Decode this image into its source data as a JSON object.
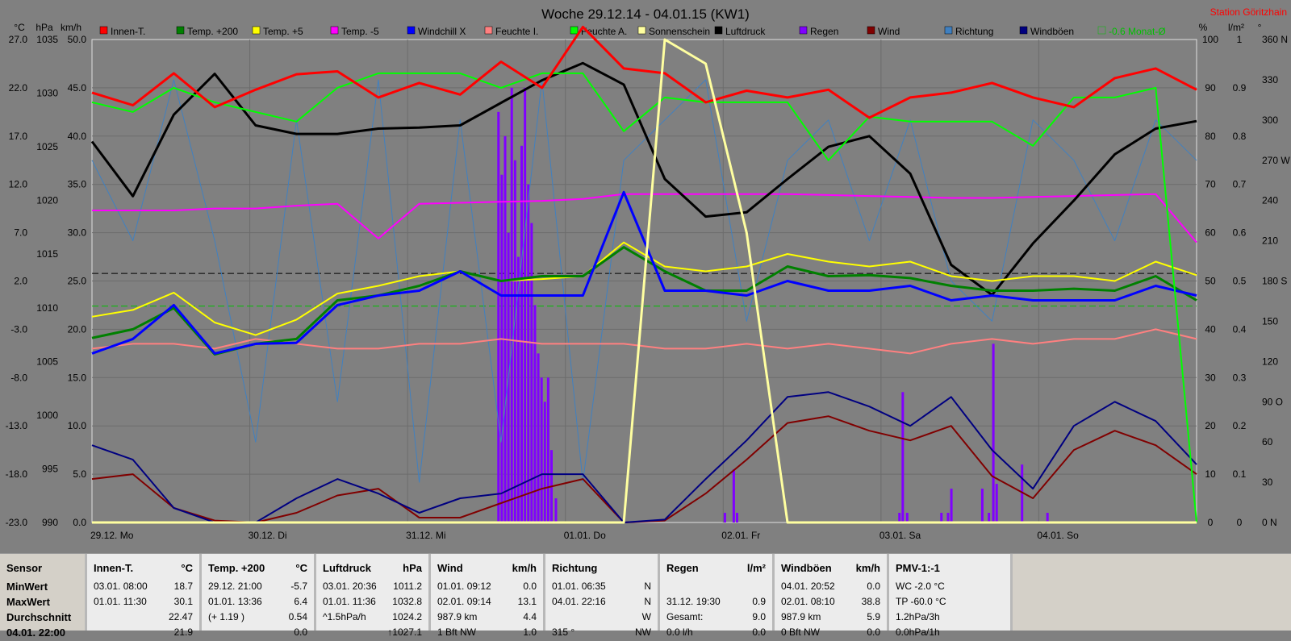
{
  "chart_data": {
    "type": "line",
    "title": "Woche 29.12.14 - 04.01.15 (KW1)",
    "station": "Station Göritzhain",
    "legend": [
      "Innen-T.",
      "Temp. +200",
      "Temp. +5",
      "Temp. -5",
      "Windchill X",
      "Feuchte I.",
      "Feuchte A.",
      "Sonnenschein",
      "Luftdruck",
      "Regen",
      "Wind",
      "Richtung",
      "Windböen",
      "-0.6 Monat-Ø"
    ],
    "legend_colors": [
      "#ff0000",
      "#008000",
      "#ffff00",
      "#ff00ff",
      "#0000ff",
      "#ff8080",
      "#00ff00",
      "#ffffa0",
      "#000000",
      "#8000ff",
      "#800000",
      "#4080c0",
      "#000080",
      "#00c000"
    ],
    "left_axis_headers": [
      "°C",
      "hPa",
      "km/h"
    ],
    "right_axis_headers": [
      "%",
      "l/m²",
      "°"
    ],
    "axis_celsius": [
      "27.0",
      "22.0",
      "17.0",
      "12.0",
      "7.0",
      "2.0",
      "-3.0",
      "-8.0",
      "-13.0",
      "-18.0",
      "-23.0"
    ],
    "axis_hpa": [
      "1035",
      "1030",
      "1025",
      "1020",
      "1015",
      "1010",
      "1005",
      "1000",
      "995",
      "990"
    ],
    "axis_kmh": [
      "50.0",
      "45.0",
      "40.0",
      "35.0",
      "30.0",
      "25.0",
      "20.0",
      "15.0",
      "10.0",
      "5.0",
      "0.0"
    ],
    "axis_percent": [
      "100",
      "90",
      "80",
      "70",
      "60",
      "50",
      "40",
      "30",
      "20",
      "10",
      "0"
    ],
    "axis_rain": [
      "1",
      "0.9",
      "0.8",
      "0.7",
      "0.6",
      "0.5",
      "0.4",
      "0.3",
      "0.2",
      "0.1",
      "0"
    ],
    "axis_degree": [
      "360 N",
      "330",
      "300",
      "270 W",
      "240",
      "210",
      "180 S",
      "150",
      "120",
      "90 O",
      "60",
      "30",
      "0 N"
    ],
    "x_labels": [
      "29.12. Mo",
      "30.12. Di",
      "31.12. Mi",
      "01.01. Do",
      "02.01. Fr",
      "03.01. Sa",
      "04.01. So"
    ],
    "series": [
      {
        "name": "Innen-T.",
        "unit": "°C",
        "y": [
          21.5,
          20.2,
          23.5,
          20.0,
          21.8,
          23.4,
          23.7,
          21.0,
          22.5,
          21.3,
          24.7,
          22.0,
          28.3,
          24.0,
          23.5,
          20.5,
          21.7,
          21.0,
          21.8,
          18.9,
          21.0,
          21.5,
          22.5,
          21.0,
          20.0,
          23.0,
          24.0,
          21.8
        ]
      },
      {
        "name": "Temp. +200",
        "unit": "°C",
        "y": [
          -3.9,
          -3.0,
          -0.8,
          -5.6,
          -4.5,
          -4.0,
          0.0,
          0.5,
          1.5,
          3.0,
          2.0,
          2.5,
          2.5,
          5.5,
          3.0,
          1.0,
          1.0,
          3.5,
          2.5,
          2.6,
          2.3,
          1.5,
          1.0,
          1.0,
          1.2,
          1.0,
          2.5,
          0.0
        ]
      },
      {
        "name": "Temp. +5",
        "unit": "°C",
        "y": [
          -1.7,
          -1.0,
          0.8,
          -2.3,
          -3.6,
          -2.0,
          0.7,
          1.5,
          2.5,
          3.0,
          2.0,
          2.2,
          2.5,
          6.0,
          3.5,
          3.0,
          3.5,
          4.8,
          4.0,
          3.5,
          4.0,
          2.5,
          2.0,
          2.5,
          2.5,
          2.0,
          4.0,
          2.6
        ]
      },
      {
        "name": "Temp. -5",
        "unit": "°C",
        "y": [
          9.3,
          9.3,
          9.3,
          9.5,
          9.5,
          9.8,
          10.0,
          6.4,
          10.0,
          10.1,
          10.2,
          10.3,
          10.5,
          11.0,
          11.0,
          11.0,
          11.0,
          11.0,
          10.9,
          10.8,
          10.7,
          10.6,
          10.6,
          10.7,
          10.8,
          10.9,
          11.0,
          6.0
        ]
      },
      {
        "name": "Windchill X",
        "unit": "°C",
        "y": [
          -5.5,
          -4.0,
          -0.5,
          -5.5,
          -4.5,
          -4.4,
          -0.5,
          0.5,
          1.0,
          3.0,
          0.5,
          0.5,
          0.5,
          11.2,
          1.0,
          1.0,
          0.5,
          2.0,
          1.0,
          1.0,
          1.5,
          0.0,
          0.5,
          0.0,
          0.0,
          0.0,
          1.5,
          0.5
        ]
      },
      {
        "name": "Feuchte I.",
        "unit": "%",
        "y": [
          36,
          37,
          37,
          36,
          38,
          37,
          36,
          36,
          37,
          37,
          38,
          37,
          37,
          37,
          36,
          36,
          37,
          36,
          37,
          36,
          35,
          37,
          38,
          37,
          38,
          38,
          40,
          38
        ]
      },
      {
        "name": "Feuchte A.",
        "unit": "%",
        "y": [
          87,
          85,
          90,
          87,
          85,
          83,
          90,
          93,
          93,
          93,
          90,
          93,
          93,
          81,
          88,
          87,
          87,
          87,
          75,
          84,
          83,
          83,
          83,
          78,
          88,
          88,
          90,
          0
        ]
      },
      {
        "name": "Sonnenschein",
        "unit": "%",
        "y": [
          0,
          0,
          0,
          0,
          0,
          0,
          0,
          0,
          0,
          0,
          0,
          0,
          0,
          0,
          100,
          95,
          60,
          0,
          0,
          0,
          0,
          0,
          0,
          0,
          0,
          0,
          0,
          0
        ]
      },
      {
        "name": "Luftdruck",
        "unit": "hPa",
        "y": [
          1025.5,
          1020.4,
          1028.0,
          1031.8,
          1027.0,
          1026.2,
          1026.2,
          1026.7,
          1026.8,
          1027.0,
          1029.1,
          1031.2,
          1032.8,
          1030.8,
          1022.0,
          1018.5,
          1018.9,
          1022.0,
          1025.0,
          1026.0,
          1022.5,
          1014.0,
          1011.2,
          1016.0,
          1020.0,
          1024.3,
          1026.7,
          1027.4
        ]
      },
      {
        "name": "Wind",
        "unit": "km/h",
        "y": [
          4.5,
          5.0,
          1.5,
          0.2,
          0.0,
          1.0,
          2.8,
          3.5,
          0.5,
          0.5,
          2.0,
          3.5,
          4.5,
          0.0,
          0.2,
          3.0,
          6.5,
          10.3,
          11.0,
          9.5,
          8.5,
          10.0,
          4.8,
          2.5,
          7.5,
          9.5,
          8.0,
          5.0
        ]
      },
      {
        "name": "Windböen",
        "unit": "km/h",
        "y": [
          8.0,
          6.5,
          1.5,
          0.0,
          0.0,
          2.5,
          4.5,
          3.0,
          1.0,
          2.5,
          3.0,
          5.0,
          5.0,
          0.0,
          0.3,
          4.5,
          8.5,
          13.0,
          13.5,
          12.0,
          10.0,
          13.0,
          7.5,
          3.5,
          10.0,
          12.5,
          10.5,
          6.0
        ]
      },
      {
        "name": "Richtung",
        "unit": "°",
        "y": [
          270,
          210,
          330,
          210,
          60,
          300,
          90,
          330,
          30,
          300,
          60,
          330,
          30,
          270,
          300,
          330,
          150,
          270,
          300,
          210,
          300,
          180,
          150,
          300,
          270,
          210,
          300,
          270
        ]
      }
    ],
    "rain_bars": [
      {
        "x": 0.368,
        "v": 0.85
      },
      {
        "x": 0.371,
        "v": 0.72
      },
      {
        "x": 0.374,
        "v": 0.8
      },
      {
        "x": 0.377,
        "v": 0.6
      },
      {
        "x": 0.38,
        "v": 0.9
      },
      {
        "x": 0.383,
        "v": 0.75
      },
      {
        "x": 0.386,
        "v": 0.55
      },
      {
        "x": 0.389,
        "v": 0.78
      },
      {
        "x": 0.392,
        "v": 0.9
      },
      {
        "x": 0.395,
        "v": 0.7
      },
      {
        "x": 0.398,
        "v": 0.62
      },
      {
        "x": 0.401,
        "v": 0.45
      },
      {
        "x": 0.404,
        "v": 0.35
      },
      {
        "x": 0.407,
        "v": 0.3
      },
      {
        "x": 0.41,
        "v": 0.25
      },
      {
        "x": 0.413,
        "v": 0.3
      },
      {
        "x": 0.416,
        "v": 0.15
      },
      {
        "x": 0.42,
        "v": 0.05
      },
      {
        "x": 0.573,
        "v": 0.02
      },
      {
        "x": 0.581,
        "v": 0.11
      },
      {
        "x": 0.584,
        "v": 0.02
      },
      {
        "x": 0.731,
        "v": 0.02
      },
      {
        "x": 0.734,
        "v": 0.27
      },
      {
        "x": 0.738,
        "v": 0.02
      },
      {
        "x": 0.769,
        "v": 0.02
      },
      {
        "x": 0.775,
        "v": 0.02
      },
      {
        "x": 0.778,
        "v": 0.07
      },
      {
        "x": 0.806,
        "v": 0.07
      },
      {
        "x": 0.812,
        "v": 0.02
      },
      {
        "x": 0.816,
        "v": 0.37
      },
      {
        "x": 0.819,
        "v": 0.08
      },
      {
        "x": 0.842,
        "v": 0.12
      },
      {
        "x": 0.865,
        "v": 0.02
      }
    ],
    "monat_mittel_celsius": -0.6,
    "reference_hpa": 1013.2,
    "ylim_celsius": [
      -23.0,
      27.0
    ],
    "ylim_hpa": [
      990,
      1035
    ],
    "ylim_kmh": [
      0,
      50
    ],
    "grid": true,
    "legend_placement": "top"
  },
  "stats": {
    "columns": [
      {
        "title": "Sensor",
        "unit": "",
        "rows": [
          [
            "MinWert",
            ""
          ],
          [
            "MaxWert",
            ""
          ],
          [
            "Durchschnitt",
            ""
          ],
          [
            "04.01. 22:00",
            ""
          ]
        ]
      },
      {
        "title": "Innen-T.",
        "unit": "°C",
        "rows": [
          [
            "03.01. 08:00",
            "18.7"
          ],
          [
            "01.01. 11:30",
            "30.1"
          ],
          [
            "",
            "22.47"
          ],
          [
            "",
            "21.9"
          ]
        ]
      },
      {
        "title": "Temp. +200",
        "unit": "°C",
        "rows": [
          [
            "29.12. 21:00",
            "-5.7"
          ],
          [
            "01.01. 13:36",
            "6.4"
          ],
          [
            "(+ 1.19 )",
            "0.54"
          ],
          [
            "",
            "0.0"
          ]
        ]
      },
      {
        "title": "Luftdruck",
        "unit": "hPa",
        "rows": [
          [
            "03.01. 20:36",
            "1011.2"
          ],
          [
            "01.01. 11:36",
            "1032.8"
          ],
          [
            "^1.5hPa/h",
            "1024.2"
          ],
          [
            "",
            "↑1027.1"
          ]
        ]
      },
      {
        "title": "Wind",
        "unit": "km/h",
        "rows": [
          [
            "01.01. 09:12",
            "0.0"
          ],
          [
            "02.01. 09:14",
            "13.1"
          ],
          [
            "987.9 km",
            "4.4"
          ],
          [
            "1 Bft NW",
            "1.0"
          ]
        ]
      },
      {
        "title": "Richtung",
        "unit": "",
        "rows": [
          [
            "01.01. 06:35",
            "N"
          ],
          [
            "04.01. 22:16",
            "N"
          ],
          [
            "",
            "W"
          ],
          [
            "315 °",
            "NW"
          ]
        ]
      },
      {
        "title": "Regen",
        "unit": "l/m²",
        "rows": [
          [
            "",
            ""
          ],
          [
            "31.12. 19:30",
            "0.9"
          ],
          [
            "Gesamt:",
            "9.0"
          ],
          [
            "0.0 l/h",
            "0.0"
          ]
        ]
      },
      {
        "title": "Windböen",
        "unit": "km/h",
        "rows": [
          [
            "04.01. 20:52",
            "0.0"
          ],
          [
            "02.01. 08:10",
            "38.8"
          ],
          [
            "987.9 km",
            "5.9"
          ],
          [
            "0 Bft NW",
            "0.0"
          ]
        ]
      },
      {
        "title": "PMV-1:-1",
        "unit": "",
        "rows": [
          [
            "WC -2.0 °C",
            ""
          ],
          [
            "TP -60.0 °C",
            ""
          ],
          [
            "1.2hPa/3h",
            ""
          ],
          [
            "0.0hPa/1h",
            ""
          ]
        ]
      }
    ]
  }
}
